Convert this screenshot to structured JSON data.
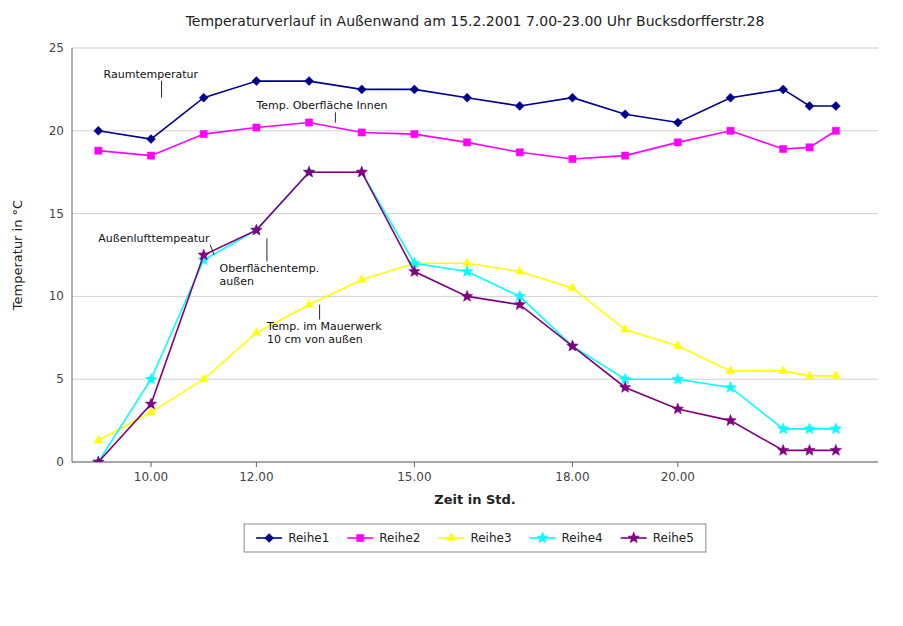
{
  "chart_data": {
    "type": "line",
    "title": "Temperaturverlauf in Außenwand am 15.2.2001 7.00-23.00 Uhr Bucksdorfferstr.28",
    "xlabel": "Zeit in Std.",
    "ylabel": "Temperatur in °C",
    "x": [
      9.0,
      10.0,
      11.0,
      12.0,
      13.0,
      14.0,
      15.0,
      16.0,
      17.0,
      18.0,
      19.0,
      20.0,
      21.0,
      22.0,
      22.5,
      23.0
    ],
    "xlim": [
      8.5,
      23.8
    ],
    "xticks": [
      {
        "value": 10.0,
        "label": "10.00"
      },
      {
        "value": 12.0,
        "label": "12.00"
      },
      {
        "value": 15.0,
        "label": "15.00"
      },
      {
        "value": 18.0,
        "label": "18.00"
      },
      {
        "value": 20.0,
        "label": "20.00"
      }
    ],
    "ylim": [
      0,
      25
    ],
    "yticks": [
      0,
      5,
      10,
      15,
      20,
      25
    ],
    "grid": true,
    "legend": "bottom",
    "series": [
      {
        "name": "Reihe1",
        "color": "#00008B",
        "marker": "diamond",
        "values": [
          20.0,
          19.5,
          22.0,
          23.0,
          23.0,
          22.5,
          22.5,
          22.0,
          21.5,
          22.0,
          21.0,
          20.5,
          22.0,
          22.5,
          21.5,
          21.5
        ]
      },
      {
        "name": "Reihe2",
        "color": "#FF00FF",
        "marker": "square",
        "values": [
          18.8,
          18.5,
          19.8,
          20.2,
          20.5,
          19.9,
          19.8,
          19.3,
          18.7,
          18.3,
          18.5,
          19.3,
          20.0,
          18.9,
          19.0,
          20.0
        ]
      },
      {
        "name": "Reihe3",
        "color": "#FFFF00",
        "marker": "triangle",
        "values": [
          1.3,
          3.0,
          5.0,
          7.8,
          9.5,
          11.0,
          12.0,
          12.0,
          11.5,
          10.5,
          8.0,
          7.0,
          5.5,
          5.5,
          5.2,
          5.2
        ]
      },
      {
        "name": "Reihe4",
        "color": "#00FFFF",
        "marker": "star",
        "values": [
          0.0,
          5.0,
          12.2,
          14.0,
          17.5,
          17.5,
          12.0,
          11.5,
          10.0,
          7.0,
          5.0,
          5.0,
          4.5,
          2.0,
          2.0,
          2.0
        ]
      },
      {
        "name": "Reihe5",
        "color": "#800080",
        "marker": "star",
        "values": [
          0.0,
          3.5,
          12.5,
          14.0,
          17.5,
          17.5,
          11.5,
          10.0,
          9.5,
          7.0,
          4.5,
          3.2,
          2.5,
          0.7,
          0.7,
          0.7
        ]
      }
    ],
    "annotations": [
      {
        "text": "Raumtemperatur",
        "x": 10.2,
        "y": 22.0,
        "text_x": 9.1,
        "text_y": 23.2
      },
      {
        "text": "Temp. Oberfläche Innen",
        "x": 13.5,
        "y": 20.5,
        "text_x": 12.0,
        "text_y": 21.3
      },
      {
        "text": "Außenlufttempeatur",
        "x": 11.2,
        "y": 12.5,
        "text_x": 9.0,
        "text_y": 13.3
      },
      {
        "text": "Oberflächentemp.\naußen",
        "x": 12.2,
        "y": 13.5,
        "text_x": 11.3,
        "text_y": 11.5
      },
      {
        "text": "Temp. im Mauerwerk\n10 cm von außen",
        "x": 13.2,
        "y": 9.5,
        "text_x": 12.2,
        "text_y": 8.0
      }
    ]
  }
}
